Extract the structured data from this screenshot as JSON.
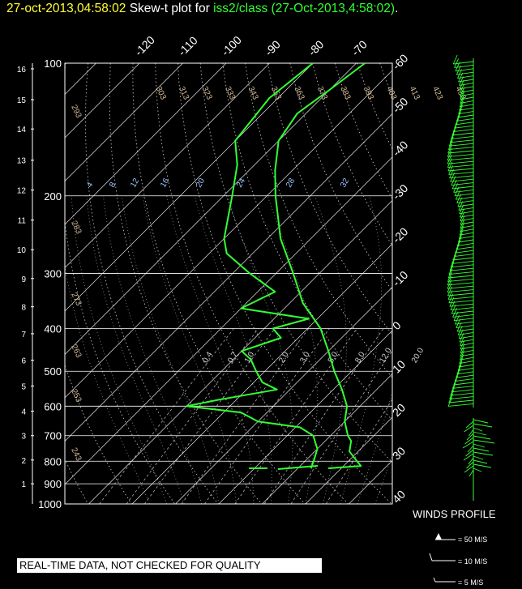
{
  "title": {
    "date": "27-oct-2013,04:58:02",
    "label": "Skew-t plot for",
    "source": "iss2/class (27-Oct-2013,4:58:02)",
    "end": "."
  },
  "chart_data": {
    "type": "line",
    "chart_kind": "skew-t log-p",
    "y_axis_pressure_mb": {
      "ticks": [
        100,
        200,
        300,
        400,
        500,
        600,
        700,
        800,
        900,
        1000
      ],
      "scale": "log",
      "range": [
        1000,
        100
      ]
    },
    "y_axis_height_km": {
      "ticks": [
        "1",
        "2",
        "3",
        "4",
        "5",
        "6",
        "7",
        "8",
        "9",
        "10",
        "11",
        "12",
        "13",
        "14",
        "15",
        "16"
      ]
    },
    "temperature_ticks_c": [
      "-120",
      "-110",
      "-100",
      "-90",
      "-80",
      "-70",
      "-60",
      "-50",
      "-40",
      "-30",
      "-20",
      "-10",
      "0",
      "10",
      "20",
      "30",
      "40"
    ],
    "theta_labels": [
      "303",
      "313",
      "323",
      "333",
      "343",
      "353",
      "363",
      "373",
      "383",
      "393",
      "403",
      "413",
      "423",
      "433",
      "293",
      "283",
      "273",
      "263",
      "253",
      "243"
    ],
    "theta_e_labels": [
      "4",
      "8",
      "12",
      "16",
      "20",
      "24",
      "28",
      "32"
    ],
    "mixing_ratio_labels": [
      "0.4",
      "0.7",
      "1.0",
      "2.0",
      "3.0",
      "5.0",
      "8.0",
      "12.0",
      "20.0"
    ],
    "temperature_profile": [
      {
        "p": 830,
        "t": 17
      },
      {
        "p": 820,
        "t": 24
      },
      {
        "p": 800,
        "t": 22
      },
      {
        "p": 760,
        "t": 18
      },
      {
        "p": 720,
        "t": 16
      },
      {
        "p": 700,
        "t": 14
      },
      {
        "p": 650,
        "t": 10
      },
      {
        "p": 600,
        "t": 7
      },
      {
        "p": 550,
        "t": 2
      },
      {
        "p": 500,
        "t": -4
      },
      {
        "p": 450,
        "t": -10
      },
      {
        "p": 400,
        "t": -17
      },
      {
        "p": 350,
        "t": -27
      },
      {
        "p": 300,
        "t": -36
      },
      {
        "p": 250,
        "t": -47
      },
      {
        "p": 200,
        "t": -58
      },
      {
        "p": 175,
        "t": -64
      },
      {
        "p": 150,
        "t": -70
      },
      {
        "p": 130,
        "t": -72
      },
      {
        "p": 115,
        "t": -70
      },
      {
        "p": 100,
        "t": -68
      }
    ],
    "dewpoint_profile": [
      {
        "p": 830,
        "t": 13
      },
      {
        "p": 800,
        "t": 12
      },
      {
        "p": 750,
        "t": 10
      },
      {
        "p": 700,
        "t": 6
      },
      {
        "p": 670,
        "t": 1
      },
      {
        "p": 650,
        "t": -10
      },
      {
        "p": 620,
        "t": -16
      },
      {
        "p": 600,
        "t": -30
      },
      {
        "p": 580,
        "t": -24
      },
      {
        "p": 550,
        "t": -13
      },
      {
        "p": 530,
        "t": -18
      },
      {
        "p": 500,
        "t": -22
      },
      {
        "p": 470,
        "t": -26
      },
      {
        "p": 450,
        "t": -30
      },
      {
        "p": 420,
        "t": -24
      },
      {
        "p": 400,
        "t": -28
      },
      {
        "p": 380,
        "t": -22
      },
      {
        "p": 360,
        "t": -40
      },
      {
        "p": 330,
        "t": -36
      },
      {
        "p": 300,
        "t": -46
      },
      {
        "p": 270,
        "t": -56
      },
      {
        "p": 250,
        "t": -60
      },
      {
        "p": 200,
        "t": -68
      },
      {
        "p": 170,
        "t": -74
      },
      {
        "p": 150,
        "t": -80
      },
      {
        "p": 120,
        "t": -82
      },
      {
        "p": 100,
        "t": -80
      }
    ],
    "grid": true,
    "colors": {
      "profiles": "#33ff33",
      "isotherm": "#ffffff",
      "theta": "#d4b896",
      "theta_e": "#9ec6ff",
      "barbs": "#33ff33"
    }
  },
  "winds": {
    "title": "WINDS PROFILE",
    "key": [
      "= 50 M/S",
      "= 10 M/S",
      "= 5 M/S"
    ]
  },
  "disclaimer": "REAL-TIME DATA, NOT CHECKED FOR QUALITY"
}
